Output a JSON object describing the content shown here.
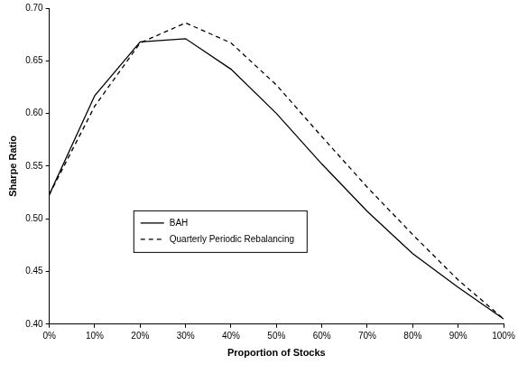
{
  "chart_data": {
    "type": "line",
    "x_label": "Proportion of Stocks",
    "y_label": "Sharpe Ratio",
    "categories": [
      "0%",
      "10%",
      "20%",
      "30%",
      "40%",
      "50%",
      "60%",
      "70%",
      "80%",
      "90%",
      "100%"
    ],
    "series": [
      {
        "name": "BAH",
        "color": "#000000",
        "line_style": "solid",
        "values": [
          0.523,
          0.617,
          0.668,
          0.671,
          0.642,
          0.6,
          0.552,
          0.507,
          0.467,
          0.435,
          0.405
        ]
      },
      {
        "name": "Quarterly Periodic Rebalancing",
        "color": "#000000",
        "line_style": "dashed",
        "values": [
          0.523,
          0.607,
          0.667,
          0.686,
          0.667,
          0.627,
          0.578,
          0.53,
          0.485,
          0.442,
          0.405
        ]
      }
    ],
    "ylim": [
      0.4,
      0.7
    ],
    "yticks": [
      {
        "value": 0.4,
        "label": "0.40"
      },
      0.45,
      {
        "value": 0.5,
        "label": "0.50"
      },
      0.55,
      {
        "value": 0.6,
        "label": "0.60"
      },
      0.65,
      {
        "value": 0.7,
        "label": "0.70"
      }
    ],
    "grid": false,
    "legend": "left"
  }
}
